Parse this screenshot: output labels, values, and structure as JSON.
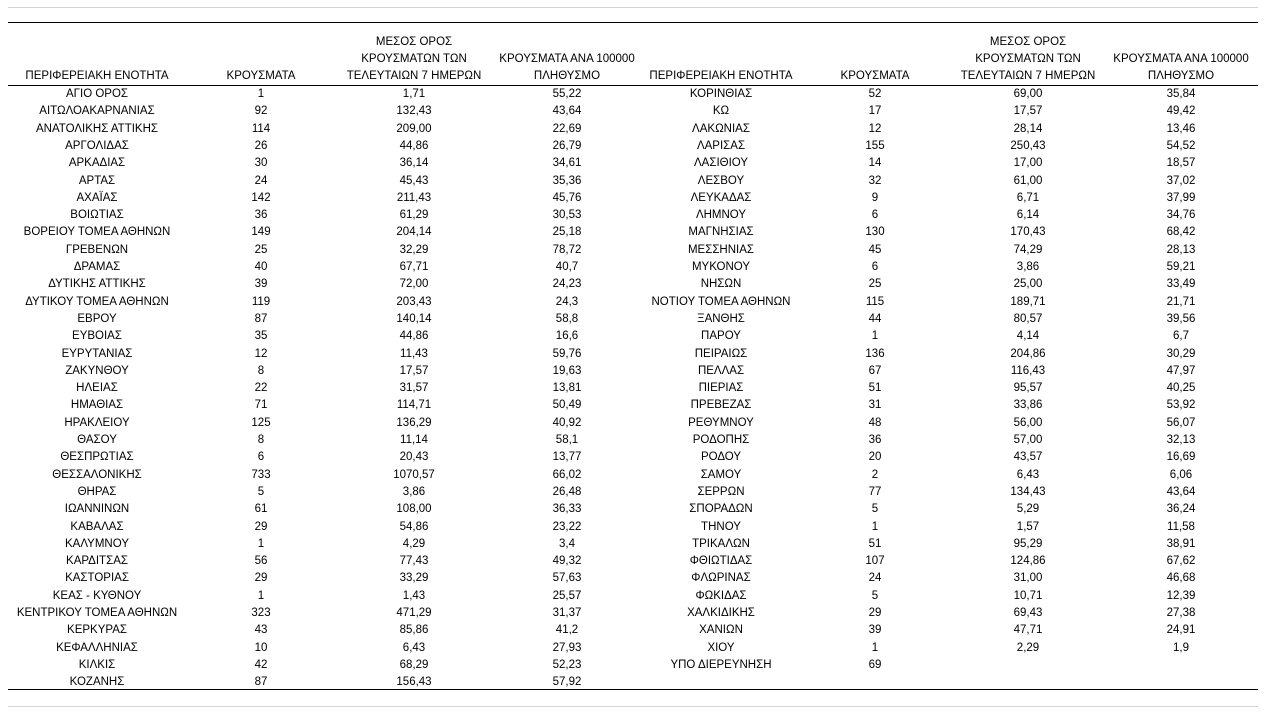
{
  "table": {
    "left": {
      "headers": [
        [
          "ΠΕΡΙΦΕΡΕΙΑΚΗ ΕΝΟΤΗΤΑ"
        ],
        [
          "ΚΡΟΥΣΜΑΤΑ"
        ],
        [
          "ΜΕΣΟΣ ΟΡΟΣ",
          "ΚΡΟΥΣΜΑΤΩΝ ΤΩΝ",
          "ΤΕΛΕΥΤΑΙΩΝ 7 ΗΜΕΡΩΝ"
        ],
        [
          "ΚΡΟΥΣΜΑΤΑ ΑΝΑ 100000",
          "ΠΛΗΘΥΣΜΟ"
        ]
      ],
      "rows": [
        [
          "ΑΓΙΟ ΟΡΟΣ",
          "1",
          "1,71",
          "55,22"
        ],
        [
          "ΑΙΤΩΛΟΑΚΑΡΝΑΝΙΑΣ",
          "92",
          "132,43",
          "43,64"
        ],
        [
          "ΑΝΑΤΟΛΙΚΗΣ ΑΤΤΙΚΗΣ",
          "114",
          "209,00",
          "22,69"
        ],
        [
          "ΑΡΓΟΛΙΔΑΣ",
          "26",
          "44,86",
          "26,79"
        ],
        [
          "ΑΡΚΑΔΙΑΣ",
          "30",
          "36,14",
          "34,61"
        ],
        [
          "ΑΡΤΑΣ",
          "24",
          "45,43",
          "35,36"
        ],
        [
          "ΑΧΑΪΑΣ",
          "142",
          "211,43",
          "45,76"
        ],
        [
          "ΒΟΙΩΤΙΑΣ",
          "36",
          "61,29",
          "30,53"
        ],
        [
          "ΒΟΡΕΙΟΥ ΤΟΜΕΑ ΑΘΗΝΩΝ",
          "149",
          "204,14",
          "25,18"
        ],
        [
          "ΓΡΕΒΕΝΩΝ",
          "25",
          "32,29",
          "78,72"
        ],
        [
          "ΔΡΑΜΑΣ",
          "40",
          "67,71",
          "40,7"
        ],
        [
          "ΔΥΤΙΚΗΣ ΑΤΤΙΚΗΣ",
          "39",
          "72,00",
          "24,23"
        ],
        [
          "ΔΥΤΙΚΟΥ ΤΟΜΕΑ ΑΘΗΝΩΝ",
          "119",
          "203,43",
          "24,3"
        ],
        [
          "ΕΒΡΟΥ",
          "87",
          "140,14",
          "58,8"
        ],
        [
          "ΕΥΒΟΙΑΣ",
          "35",
          "44,86",
          "16,6"
        ],
        [
          "ΕΥΡΥΤΑΝΙΑΣ",
          "12",
          "11,43",
          "59,76"
        ],
        [
          "ΖΑΚΥΝΘΟΥ",
          "8",
          "17,57",
          "19,63"
        ],
        [
          "ΗΛΕΙΑΣ",
          "22",
          "31,57",
          "13,81"
        ],
        [
          "ΗΜΑΘΙΑΣ",
          "71",
          "114,71",
          "50,49"
        ],
        [
          "ΗΡΑΚΛΕΙΟΥ",
          "125",
          "136,29",
          "40,92"
        ],
        [
          "ΘΑΣΟΥ",
          "8",
          "11,14",
          "58,1"
        ],
        [
          "ΘΕΣΠΡΩΤΙΑΣ",
          "6",
          "20,43",
          "13,77"
        ],
        [
          "ΘΕΣΣΑΛΟΝΙΚΗΣ",
          "733",
          "1070,57",
          "66,02"
        ],
        [
          "ΘΗΡΑΣ",
          "5",
          "3,86",
          "26,48"
        ],
        [
          "ΙΩΑΝΝΙΝΩΝ",
          "61",
          "108,00",
          "36,33"
        ],
        [
          "ΚΑΒΑΛΑΣ",
          "29",
          "54,86",
          "23,22"
        ],
        [
          "ΚΑΛΥΜΝΟΥ",
          "1",
          "4,29",
          "3,4"
        ],
        [
          "ΚΑΡΔΙΤΣΑΣ",
          "56",
          "77,43",
          "49,32"
        ],
        [
          "ΚΑΣΤΟΡΙΑΣ",
          "29",
          "33,29",
          "57,63"
        ],
        [
          "ΚΕΑΣ - ΚΥΘΝΟΥ",
          "1",
          "1,43",
          "25,57"
        ],
        [
          "ΚΕΝΤΡΙΚΟΥ ΤΟΜΕΑ ΑΘΗΝΩΝ",
          "323",
          "471,29",
          "31,37"
        ],
        [
          "ΚΕΡΚΥΡΑΣ",
          "43",
          "85,86",
          "41,2"
        ],
        [
          "ΚΕΦΑΛΛΗΝΙΑΣ",
          "10",
          "6,43",
          "27,93"
        ],
        [
          "ΚΙΛΚΙΣ",
          "42",
          "68,29",
          "52,23"
        ],
        [
          "ΚΟΖΑΝΗΣ",
          "87",
          "156,43",
          "57,92"
        ]
      ]
    },
    "right": {
      "headers": [
        [
          "ΠΕΡΙΦΕΡΕΙΑΚΗ ΕΝΟΤΗΤΑ"
        ],
        [
          "ΚΡΟΥΣΜΑΤΑ"
        ],
        [
          "ΜΕΣΟΣ ΟΡΟΣ",
          "ΚΡΟΥΣΜΑΤΩΝ ΤΩΝ",
          "ΤΕΛΕΥΤΑΙΩΝ 7 ΗΜΕΡΩΝ"
        ],
        [
          "ΚΡΟΥΣΜΑΤΑ ΑΝΑ 100000",
          "ΠΛΗΘΥΣΜΟ"
        ]
      ],
      "rows": [
        [
          "ΚΟΡΙΝΘΙΑΣ",
          "52",
          "69,00",
          "35,84"
        ],
        [
          "ΚΩ",
          "17",
          "17,57",
          "49,42"
        ],
        [
          "ΛΑΚΩΝΙΑΣ",
          "12",
          "28,14",
          "13,46"
        ],
        [
          "ΛΑΡΙΣΑΣ",
          "155",
          "250,43",
          "54,52"
        ],
        [
          "ΛΑΣΙΘΙΟΥ",
          "14",
          "17,00",
          "18,57"
        ],
        [
          "ΛΕΣΒΟΥ",
          "32",
          "61,00",
          "37,02"
        ],
        [
          "ΛΕΥΚΑΔΑΣ",
          "9",
          "6,71",
          "37,99"
        ],
        [
          "ΛΗΜΝΟΥ",
          "6",
          "6,14",
          "34,76"
        ],
        [
          "ΜΑΓΝΗΣΙΑΣ",
          "130",
          "170,43",
          "68,42"
        ],
        [
          "ΜΕΣΣΗΝΙΑΣ",
          "45",
          "74,29",
          "28,13"
        ],
        [
          "ΜΥΚΟΝΟΥ",
          "6",
          "3,86",
          "59,21"
        ],
        [
          "ΝΗΣΩΝ",
          "25",
          "25,00",
          "33,49"
        ],
        [
          "ΝΟΤΙΟΥ ΤΟΜΕΑ ΑΘΗΝΩΝ",
          "115",
          "189,71",
          "21,71"
        ],
        [
          "ΞΑΝΘΗΣ",
          "44",
          "80,57",
          "39,56"
        ],
        [
          "ΠΑΡΟΥ",
          "1",
          "4,14",
          "6,7"
        ],
        [
          "ΠΕΙΡΑΙΩΣ",
          "136",
          "204,86",
          "30,29"
        ],
        [
          "ΠΕΛΛΑΣ",
          "67",
          "116,43",
          "47,97"
        ],
        [
          "ΠΙΕΡΙΑΣ",
          "51",
          "95,57",
          "40,25"
        ],
        [
          "ΠΡΕΒΕΖΑΣ",
          "31",
          "33,86",
          "53,92"
        ],
        [
          "ΡΕΘΥΜΝΟΥ",
          "48",
          "56,00",
          "56,07"
        ],
        [
          "ΡΟΔΟΠΗΣ",
          "36",
          "57,00",
          "32,13"
        ],
        [
          "ΡΟΔΟΥ",
          "20",
          "43,57",
          "16,69"
        ],
        [
          "ΣΑΜΟΥ",
          "2",
          "6,43",
          "6,06"
        ],
        [
          "ΣΕΡΡΩΝ",
          "77",
          "134,43",
          "43,64"
        ],
        [
          "ΣΠΟΡΑΔΩΝ",
          "5",
          "5,29",
          "36,24"
        ],
        [
          "ΤΗΝΟΥ",
          "1",
          "1,57",
          "11,58"
        ],
        [
          "ΤΡΙΚΑΛΩΝ",
          "51",
          "95,29",
          "38,91"
        ],
        [
          "ΦΘΙΩΤΙΔΑΣ",
          "107",
          "124,86",
          "67,62"
        ],
        [
          "ΦΛΩΡΙΝΑΣ",
          "24",
          "31,00",
          "46,68"
        ],
        [
          "ΦΩΚΙΔΑΣ",
          "5",
          "10,71",
          "12,39"
        ],
        [
          "ΧΑΛΚΙΔΙΚΗΣ",
          "29",
          "69,43",
          "27,38"
        ],
        [
          "ΧΑΝΙΩΝ",
          "39",
          "47,71",
          "24,91"
        ],
        [
          "ΧΙΟΥ",
          "1",
          "2,29",
          "1,9"
        ],
        [
          "ΥΠΟ ΔΙΕΡΕΥΝΗΣΗ",
          "69"
        ]
      ]
    }
  }
}
